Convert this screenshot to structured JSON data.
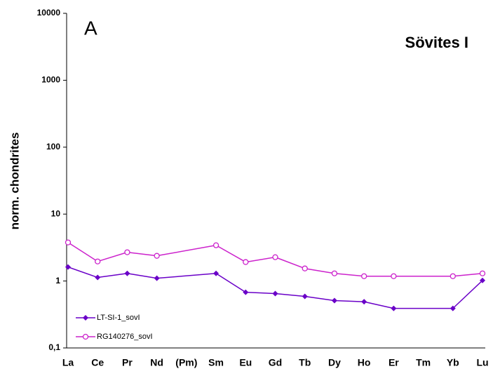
{
  "chart_data": {
    "type": "line",
    "title": "Sövites I",
    "annotation": "A",
    "y_label": "norm. chondrites",
    "categories": [
      "La",
      "Ce",
      "Pr",
      "Nd",
      "(Pm)",
      "Sm",
      "Eu",
      "Gd",
      "Tb",
      "Dy",
      "Ho",
      "Er",
      "Tm",
      "Yb",
      "Lu"
    ],
    "series": [
      {
        "name": "LT-SI-1_sovI",
        "color": "#6a00c8",
        "marker": "diamond",
        "values": [
          1.62,
          1.13,
          1.3,
          1.1,
          null,
          1.3,
          0.68,
          0.65,
          0.59,
          0.51,
          0.49,
          0.39,
          null,
          0.39,
          1.02
        ]
      },
      {
        "name": "RG140276_sovI",
        "color": "#cc22cc",
        "marker": "circle",
        "values": [
          3.77,
          1.96,
          2.69,
          2.38,
          null,
          3.42,
          1.92,
          2.27,
          1.54,
          1.3,
          1.18,
          1.18,
          null,
          1.18,
          1.3
        ]
      }
    ],
    "log_scale": true,
    "ylim": [
      0.1,
      10000
    ],
    "yticks": [
      {
        "value": 0.1,
        "label": "0,1"
      },
      1,
      10,
      100,
      1000,
      10000
    ]
  }
}
